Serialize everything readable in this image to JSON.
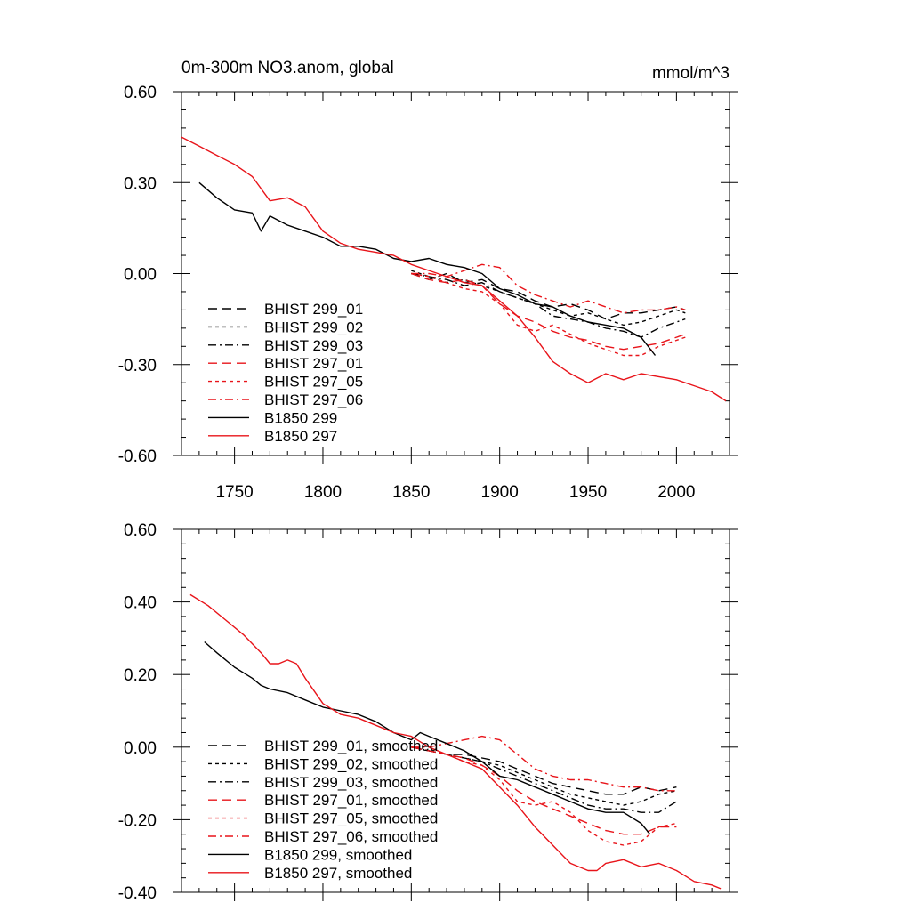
{
  "colors": {
    "black": "#000000",
    "red": "#e8141a"
  },
  "chart_data": [
    {
      "type": "line",
      "title": "0m-300m NO3.anom, global",
      "units": "mmol/m^3",
      "xlim": [
        1720,
        2030
      ],
      "ylim": [
        -0.6,
        0.6
      ],
      "x_ticks": [
        1750,
        1800,
        1850,
        1900,
        1950,
        2000
      ],
      "x_tick_labels": [
        "1750",
        "1800",
        "1850",
        "1900",
        "1950",
        "2000"
      ],
      "y_ticks": [
        -0.6,
        -0.3,
        0.0,
        0.3,
        0.6
      ],
      "y_tick_labels": [
        "-0.60",
        "-0.30",
        "0.00",
        "0.30",
        "0.60"
      ],
      "legend_position": "lower-left",
      "series": [
        {
          "name": "BHIST 299_01",
          "color": "black",
          "dash": "long-dash",
          "x": [
            1850,
            1860,
            1870,
            1880,
            1890,
            1900,
            1910,
            1920,
            1930,
            1940,
            1950,
            1960,
            1970,
            1980,
            1990,
            2000,
            2005
          ],
          "y": [
            0.0,
            -0.02,
            0.0,
            -0.03,
            -0.02,
            -0.05,
            -0.06,
            -0.09,
            -0.11,
            -0.1,
            -0.12,
            -0.15,
            -0.13,
            -0.13,
            -0.12,
            -0.11,
            -0.12
          ]
        },
        {
          "name": "BHIST 299_02",
          "color": "black",
          "dash": "short-dash",
          "x": [
            1850,
            1860,
            1870,
            1880,
            1890,
            1900,
            1910,
            1920,
            1930,
            1940,
            1950,
            1960,
            1970,
            1980,
            1990,
            2000,
            2005
          ],
          "y": [
            0.01,
            -0.01,
            -0.03,
            -0.02,
            -0.04,
            -0.06,
            -0.08,
            -0.1,
            -0.12,
            -0.14,
            -0.13,
            -0.15,
            -0.17,
            -0.16,
            -0.14,
            -0.12,
            -0.13
          ]
        },
        {
          "name": "BHIST 299_03",
          "color": "black",
          "dash": "dash-dot",
          "x": [
            1850,
            1860,
            1870,
            1880,
            1890,
            1900,
            1910,
            1920,
            1930,
            1940,
            1950,
            1960,
            1970,
            1980,
            1990,
            2000,
            2005
          ],
          "y": [
            0.0,
            -0.01,
            -0.02,
            -0.04,
            -0.03,
            -0.06,
            -0.08,
            -0.1,
            -0.14,
            -0.15,
            -0.16,
            -0.18,
            -0.19,
            -0.21,
            -0.18,
            -0.16,
            -0.15
          ]
        },
        {
          "name": "BHIST 297_01",
          "color": "red",
          "dash": "long-dash",
          "x": [
            1850,
            1860,
            1870,
            1880,
            1890,
            1900,
            1910,
            1920,
            1930,
            1940,
            1950,
            1960,
            1970,
            1980,
            1990,
            2000,
            2005
          ],
          "y": [
            0.0,
            -0.02,
            -0.03,
            -0.02,
            -0.04,
            -0.1,
            -0.14,
            -0.16,
            -0.19,
            -0.21,
            -0.22,
            -0.24,
            -0.25,
            -0.24,
            -0.23,
            -0.21,
            -0.2
          ]
        },
        {
          "name": "BHIST 297_05",
          "color": "red",
          "dash": "short-dash",
          "x": [
            1850,
            1860,
            1870,
            1880,
            1890,
            1900,
            1910,
            1920,
            1930,
            1940,
            1950,
            1960,
            1970,
            1980,
            1990,
            2000,
            2005
          ],
          "y": [
            0.0,
            -0.01,
            -0.03,
            -0.05,
            -0.06,
            -0.1,
            -0.17,
            -0.19,
            -0.17,
            -0.2,
            -0.23,
            -0.25,
            -0.27,
            -0.27,
            -0.24,
            -0.22,
            -0.21
          ]
        },
        {
          "name": "BHIST 297_06",
          "color": "red",
          "dash": "dash-dot",
          "x": [
            1850,
            1860,
            1870,
            1880,
            1890,
            1900,
            1910,
            1920,
            1930,
            1940,
            1950,
            1960,
            1970,
            1980,
            1990,
            2000,
            2005
          ],
          "y": [
            0.0,
            0.0,
            -0.01,
            0.01,
            0.03,
            0.02,
            -0.04,
            -0.07,
            -0.09,
            -0.11,
            -0.09,
            -0.11,
            -0.13,
            -0.12,
            -0.12,
            -0.11,
            -0.12
          ]
        },
        {
          "name": "B1850 299",
          "color": "black",
          "dash": "solid",
          "x": [
            1730,
            1740,
            1750,
            1760,
            1765,
            1770,
            1780,
            1790,
            1800,
            1810,
            1820,
            1830,
            1840,
            1850,
            1860,
            1870,
            1880,
            1890,
            1900,
            1910,
            1920,
            1930,
            1940,
            1950,
            1960,
            1970,
            1980,
            1988
          ],
          "y": [
            0.3,
            0.25,
            0.21,
            0.2,
            0.14,
            0.19,
            0.16,
            0.14,
            0.12,
            0.09,
            0.09,
            0.08,
            0.05,
            0.04,
            0.05,
            0.03,
            0.02,
            0.0,
            -0.05,
            -0.07,
            -0.1,
            -0.11,
            -0.14,
            -0.16,
            -0.17,
            -0.18,
            -0.21,
            -0.27
          ]
        },
        {
          "name": "B1850 297",
          "color": "red",
          "dash": "solid",
          "x": [
            1720,
            1730,
            1740,
            1750,
            1760,
            1770,
            1780,
            1790,
            1800,
            1810,
            1820,
            1830,
            1840,
            1850,
            1860,
            1870,
            1880,
            1890,
            1900,
            1910,
            1920,
            1930,
            1940,
            1950,
            1960,
            1970,
            1980,
            1990,
            2000,
            2010,
            2020,
            2028
          ],
          "y": [
            0.45,
            0.42,
            0.39,
            0.36,
            0.32,
            0.24,
            0.25,
            0.22,
            0.14,
            0.1,
            0.08,
            0.07,
            0.06,
            0.03,
            0.01,
            -0.01,
            -0.03,
            -0.04,
            -0.09,
            -0.14,
            -0.21,
            -0.29,
            -0.33,
            -0.36,
            -0.33,
            -0.35,
            -0.33,
            -0.34,
            -0.35,
            -0.37,
            -0.39,
            -0.42
          ]
        }
      ]
    },
    {
      "type": "line",
      "title": "",
      "units": "",
      "xlim": [
        1720,
        2030
      ],
      "ylim": [
        -0.4,
        0.6
      ],
      "x_ticks": [
        1750,
        1800,
        1850,
        1900,
        1950,
        2000
      ],
      "x_tick_labels": [],
      "y_ticks": [
        -0.4,
        -0.2,
        0.0,
        0.2,
        0.4,
        0.6
      ],
      "y_tick_labels": [
        "-0.40",
        "-0.20",
        "0.00",
        "0.20",
        "0.40",
        "0.60"
      ],
      "legend_position": "lower-left",
      "series": [
        {
          "name": "BHIST 299_01, smoothed",
          "color": "black",
          "dash": "long-dash",
          "x": [
            1850,
            1860,
            1870,
            1880,
            1890,
            1900,
            1910,
            1920,
            1930,
            1940,
            1950,
            1960,
            1970,
            1980,
            1990,
            2000
          ],
          "y": [
            0.0,
            -0.01,
            -0.02,
            -0.02,
            -0.03,
            -0.04,
            -0.06,
            -0.08,
            -0.1,
            -0.11,
            -0.12,
            -0.13,
            -0.13,
            -0.11,
            -0.12,
            -0.11
          ]
        },
        {
          "name": "BHIST 299_02, smoothed",
          "color": "black",
          "dash": "short-dash",
          "x": [
            1850,
            1860,
            1870,
            1880,
            1890,
            1900,
            1910,
            1920,
            1930,
            1940,
            1950,
            1960,
            1970,
            1980,
            1990,
            2000
          ],
          "y": [
            0.0,
            -0.01,
            -0.02,
            -0.03,
            -0.04,
            -0.05,
            -0.07,
            -0.09,
            -0.11,
            -0.13,
            -0.14,
            -0.15,
            -0.16,
            -0.15,
            -0.13,
            -0.12
          ]
        },
        {
          "name": "BHIST 299_03, smoothed",
          "color": "black",
          "dash": "dash-dot",
          "x": [
            1850,
            1860,
            1870,
            1880,
            1890,
            1900,
            1910,
            1920,
            1930,
            1940,
            1950,
            1960,
            1970,
            1980,
            1990,
            2000
          ],
          "y": [
            0.0,
            -0.01,
            -0.02,
            -0.03,
            -0.04,
            -0.06,
            -0.08,
            -0.1,
            -0.12,
            -0.14,
            -0.16,
            -0.17,
            -0.17,
            -0.18,
            -0.18,
            -0.15
          ]
        },
        {
          "name": "BHIST 297_01, smoothed",
          "color": "red",
          "dash": "long-dash",
          "x": [
            1850,
            1860,
            1870,
            1880,
            1890,
            1900,
            1910,
            1920,
            1930,
            1940,
            1950,
            1960,
            1970,
            1980,
            1990,
            2000
          ],
          "y": [
            0.0,
            -0.01,
            -0.02,
            -0.03,
            -0.05,
            -0.08,
            -0.12,
            -0.15,
            -0.17,
            -0.19,
            -0.21,
            -0.23,
            -0.24,
            -0.24,
            -0.22,
            -0.22
          ]
        },
        {
          "name": "BHIST 297_05, smoothed",
          "color": "red",
          "dash": "short-dash",
          "x": [
            1850,
            1860,
            1870,
            1880,
            1890,
            1900,
            1910,
            1920,
            1930,
            1940,
            1950,
            1960,
            1970,
            1980,
            1990,
            2000
          ],
          "y": [
            0.0,
            -0.01,
            -0.02,
            -0.04,
            -0.05,
            -0.09,
            -0.15,
            -0.16,
            -0.15,
            -0.18,
            -0.23,
            -0.26,
            -0.27,
            -0.26,
            -0.22,
            -0.21
          ]
        },
        {
          "name": "BHIST 297_06, smoothed",
          "color": "red",
          "dash": "dash-dot",
          "x": [
            1850,
            1860,
            1870,
            1880,
            1890,
            1900,
            1910,
            1920,
            1930,
            1940,
            1950,
            1960,
            1970,
            1980,
            1990,
            2000
          ],
          "y": [
            0.0,
            0.0,
            0.01,
            0.02,
            0.03,
            0.02,
            -0.02,
            -0.06,
            -0.08,
            -0.09,
            -0.09,
            -0.1,
            -0.11,
            -0.11,
            -0.12,
            -0.12
          ]
        },
        {
          "name": "B1850 299, smoothed",
          "color": "black",
          "dash": "solid",
          "x": [
            1733,
            1740,
            1750,
            1760,
            1765,
            1770,
            1780,
            1790,
            1800,
            1810,
            1820,
            1830,
            1840,
            1850,
            1855,
            1860,
            1870,
            1880,
            1890,
            1900,
            1910,
            1920,
            1930,
            1940,
            1950,
            1960,
            1970,
            1980,
            1985
          ],
          "y": [
            0.29,
            0.26,
            0.22,
            0.19,
            0.17,
            0.16,
            0.15,
            0.13,
            0.11,
            0.1,
            0.09,
            0.07,
            0.04,
            0.02,
            0.04,
            0.03,
            0.01,
            -0.01,
            -0.04,
            -0.08,
            -0.09,
            -0.11,
            -0.13,
            -0.15,
            -0.17,
            -0.18,
            -0.18,
            -0.21,
            -0.24
          ]
        },
        {
          "name": "B1850 297, smoothed",
          "color": "red",
          "dash": "solid",
          "x": [
            1725,
            1735,
            1745,
            1755,
            1765,
            1770,
            1775,
            1780,
            1785,
            1790,
            1800,
            1810,
            1820,
            1830,
            1840,
            1850,
            1860,
            1870,
            1880,
            1890,
            1900,
            1910,
            1920,
            1930,
            1940,
            1950,
            1955,
            1960,
            1970,
            1980,
            1990,
            2000,
            2010,
            2020,
            2025
          ],
          "y": [
            0.42,
            0.39,
            0.35,
            0.31,
            0.26,
            0.23,
            0.23,
            0.24,
            0.23,
            0.19,
            0.12,
            0.09,
            0.08,
            0.06,
            0.04,
            0.03,
            0.0,
            -0.02,
            -0.04,
            -0.06,
            -0.11,
            -0.16,
            -0.22,
            -0.27,
            -0.32,
            -0.34,
            -0.34,
            -0.32,
            -0.31,
            -0.33,
            -0.32,
            -0.34,
            -0.37,
            -0.38,
            -0.39
          ]
        }
      ]
    }
  ]
}
